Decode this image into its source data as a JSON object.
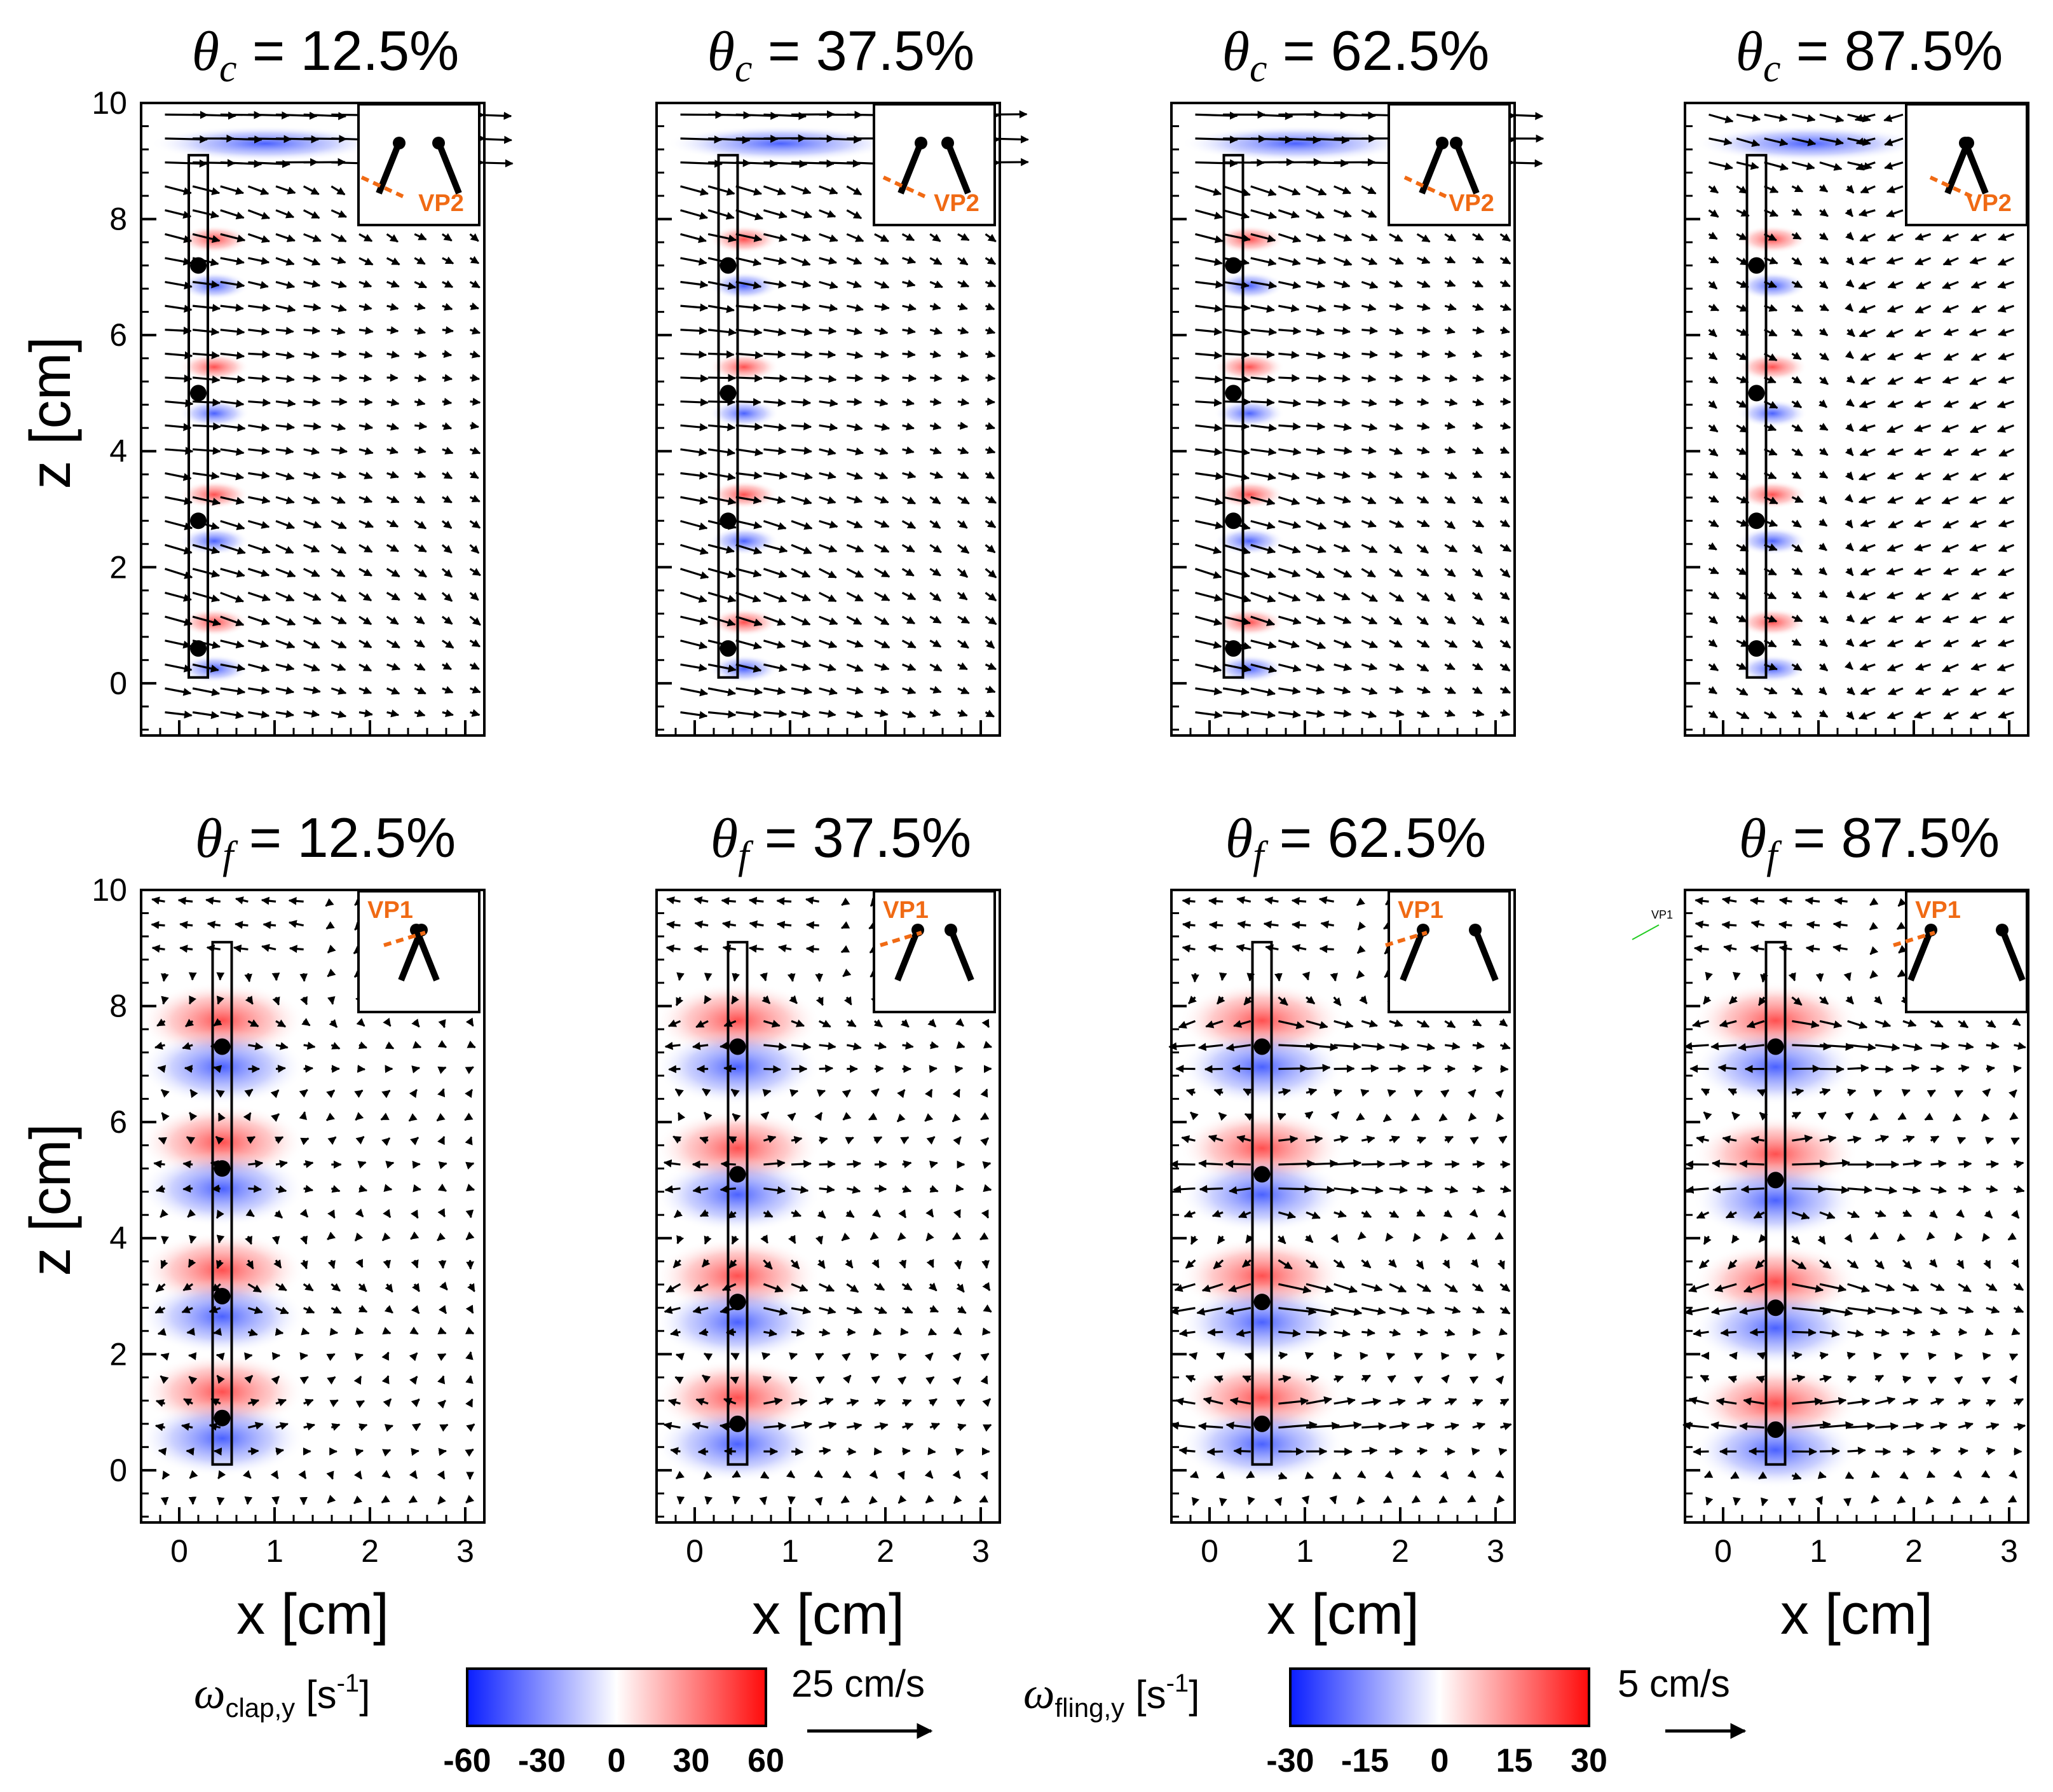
{
  "chart_data": {
    "type": "quiver",
    "rows": [
      {
        "row": "clap",
        "symbol": "θ",
        "subscript": "c"
      },
      {
        "row": "fling",
        "symbol": "θ",
        "subscript": "f"
      }
    ],
    "panels": [
      {
        "name": "clap-12.5",
        "row": 0,
        "col": 0,
        "title_symbol": "θ",
        "title_sub": "c",
        "title_value": " = 12.5%",
        "inset_label": "VP2",
        "plate_x": [
          0.1,
          0.3
        ],
        "hinge_dots_z": [
          7.2,
          5.0,
          2.8,
          0.6
        ],
        "flow": "clap"
      },
      {
        "name": "clap-37.5",
        "row": 0,
        "col": 1,
        "title_symbol": "θ",
        "title_sub": "c",
        "title_value": " = 37.5%",
        "inset_label": "VP2",
        "plate_x": [
          0.25,
          0.45
        ],
        "hinge_dots_z": [
          7.2,
          5.0,
          2.8,
          0.6
        ],
        "flow": "clap"
      },
      {
        "name": "clap-62.5",
        "row": 0,
        "col": 2,
        "title_symbol": "θ",
        "title_sub": "c",
        "title_value": " = 62.5%",
        "inset_label": "VP2",
        "plate_x": [
          0.15,
          0.35
        ],
        "hinge_dots_z": [
          7.2,
          5.0,
          2.8,
          0.6
        ],
        "flow": "clap"
      },
      {
        "name": "clap-87.5",
        "row": 0,
        "col": 3,
        "title_symbol": "θ",
        "title_sub": "c",
        "title_value": " = 87.5%",
        "inset_label": "VP2",
        "plate_x": [
          0.25,
          0.45
        ],
        "hinge_dots_z": [
          7.2,
          5.0,
          2.8,
          0.6
        ],
        "flow": "clap-late"
      },
      {
        "name": "fling-12.5",
        "row": 1,
        "col": 0,
        "title_symbol": "θ",
        "title_sub": "f",
        "title_value": " = 12.5%",
        "inset_label": "VP1",
        "plate_x": [
          0.35,
          0.55
        ],
        "hinge_dots_z": [
          7.3,
          5.2,
          3.0,
          0.9
        ],
        "flow": "fling-early"
      },
      {
        "name": "fling-37.5",
        "row": 1,
        "col": 1,
        "title_symbol": "θ",
        "title_sub": "f",
        "title_value": " = 37.5%",
        "inset_label": "VP1",
        "plate_x": [
          0.35,
          0.55
        ],
        "hinge_dots_z": [
          7.3,
          5.1,
          2.9,
          0.8
        ],
        "flow": "fling"
      },
      {
        "name": "fling-62.5",
        "row": 1,
        "col": 2,
        "title_symbol": "θ",
        "title_sub": "f",
        "title_value": " = 62.5%",
        "inset_label": "VP1",
        "plate_x": [
          0.45,
          0.65
        ],
        "hinge_dots_z": [
          7.3,
          5.1,
          2.9,
          0.8
        ],
        "flow": "fling-strong"
      },
      {
        "name": "fling-87.5",
        "row": 1,
        "col": 3,
        "title_symbol": "θ",
        "title_sub": "f",
        "title_value": " = 87.5%",
        "inset_label": "VP1",
        "plate_x": [
          0.45,
          0.65
        ],
        "hinge_dots_z": [
          7.3,
          5.0,
          2.8,
          0.7
        ],
        "flow": "fling-strong"
      }
    ],
    "x_range": [
      -0.4,
      3.2
    ],
    "z_range": [
      -0.9,
      10
    ],
    "x_ticks": [
      "0",
      "1",
      "2",
      "3"
    ],
    "x_tick_values": [
      0,
      1,
      2,
      3
    ],
    "z_ticks": [
      "0",
      "2",
      "4",
      "6",
      "8",
      "10"
    ],
    "z_tick_values": [
      0,
      2,
      4,
      6,
      8,
      10
    ],
    "xlabel": "x [cm]",
    "ylabel": "z [cm]",
    "colorbars": [
      {
        "name": "clap",
        "symbol": "ω",
        "subscript": "clap,y",
        "unit": " [s",
        "unit_exp": "-1",
        "unit_close": "]",
        "ticks": [
          "-60",
          "-30",
          "0",
          "30",
          "60"
        ],
        "range": [
          -60,
          60
        ],
        "scale_label": "25 cm/s"
      },
      {
        "name": "fling",
        "symbol": "ω",
        "subscript": "fling,y",
        "unit": " [s",
        "unit_exp": "-1",
        "unit_close": "]",
        "ticks": [
          "-30",
          "-15",
          "0",
          "15",
          "30"
        ],
        "range": [
          -30,
          30
        ],
        "scale_label": "5 cm/s"
      }
    ],
    "stray_label": "VP1",
    "colors": {
      "negative": "#1a35ff",
      "positive": "#ff1a1a",
      "inset_label": "#f06a14"
    }
  }
}
